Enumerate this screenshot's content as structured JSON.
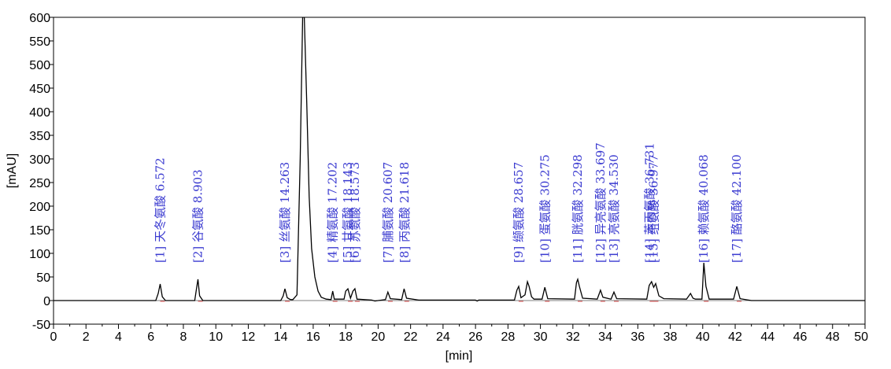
{
  "chart_data": {
    "type": "line",
    "xlabel": "[min]",
    "ylabel": "[mAU]",
    "xlim": [
      0,
      50
    ],
    "ylim": [
      -50,
      600
    ],
    "xticks": [
      0,
      2,
      4,
      6,
      8,
      10,
      12,
      14,
      16,
      18,
      20,
      22,
      24,
      26,
      28,
      30,
      32,
      34,
      36,
      38,
      40,
      42,
      44,
      46,
      48,
      50
    ],
    "yticks": [
      -50,
      0,
      50,
      100,
      150,
      200,
      250,
      300,
      350,
      400,
      450,
      500,
      550,
      600
    ],
    "grid": false,
    "series": [
      {
        "color": "#000000",
        "x": [
          0,
          6.3,
          6.45,
          6.57,
          6.7,
          6.9,
          8.7,
          8.82,
          8.9,
          9.0,
          9.2,
          14.0,
          14.15,
          14.26,
          14.4,
          14.6,
          14.75,
          15.0,
          15.2,
          15.35,
          15.45,
          15.6,
          15.75,
          15.9,
          16.1,
          16.3,
          16.5,
          16.8,
          17.1,
          17.2,
          17.3,
          17.9,
          18.0,
          18.14,
          18.3,
          18.45,
          18.57,
          18.7,
          19.6,
          19.8,
          20.0,
          20.45,
          20.6,
          20.75,
          21.45,
          21.6,
          21.75,
          22.5,
          26.0,
          26.1,
          26.2,
          28.4,
          28.55,
          28.66,
          28.8,
          29.05,
          29.2,
          29.3,
          29.45,
          29.6,
          30.1,
          30.27,
          30.45,
          32.1,
          32.22,
          32.3,
          32.4,
          32.6,
          33.5,
          33.7,
          33.85,
          34.35,
          34.53,
          34.7,
          36.55,
          36.7,
          36.85,
          36.98,
          37.1,
          37.3,
          37.6,
          39.0,
          39.25,
          39.4,
          39.55,
          39.95,
          40.07,
          40.2,
          40.4,
          41.9,
          42.1,
          42.3,
          43.0,
          50.0
        ],
        "y": [
          0,
          0,
          15,
          35,
          8,
          0,
          0,
          28,
          45,
          10,
          0,
          0,
          10,
          25,
          6,
          2,
          2,
          12,
          300,
          600,
          600,
          420,
          220,
          110,
          50,
          20,
          7,
          3,
          2,
          20,
          3,
          3,
          20,
          25,
          5,
          20,
          25,
          3,
          1,
          -1,
          0,
          2,
          18,
          4,
          2,
          25,
          5,
          1,
          1,
          -1,
          1,
          1,
          22,
          30,
          6,
          12,
          40,
          30,
          8,
          3,
          3,
          28,
          4,
          3,
          38,
          45,
          30,
          5,
          3,
          22,
          7,
          3,
          18,
          4,
          3,
          32,
          40,
          28,
          36,
          10,
          4,
          3,
          15,
          5,
          3,
          3,
          80,
          30,
          3,
          3,
          30,
          4,
          0,
          0
        ]
      }
    ],
    "peaks": [
      {
        "num": "[1]",
        "name": "天冬氨酸",
        "rt": "6.572"
      },
      {
        "num": "[2]",
        "name": "谷氨酸",
        "rt": "8.903"
      },
      {
        "num": "[3]",
        "name": "丝氨酸",
        "rt": "14.263"
      },
      {
        "num": "[4]",
        "name": "精氨酸",
        "rt": "17.202"
      },
      {
        "num": "[5]",
        "name": "甘氨酸",
        "rt": "18.143"
      },
      {
        "num": "[6]",
        "name": "苏氨酸",
        "rt": "18.573"
      },
      {
        "num": "[7]",
        "name": "脯氨酸",
        "rt": "20.607"
      },
      {
        "num": "[8]",
        "name": "丙氨酸",
        "rt": "21.618"
      },
      {
        "num": "[9]",
        "name": "缬氨酸",
        "rt": "28.657"
      },
      {
        "num": "[10]",
        "name": "蛋氨酸",
        "rt": "30.275"
      },
      {
        "num": "[11]",
        "name": "胱氨酸",
        "rt": "32.298"
      },
      {
        "num": "[12]",
        "name": "异亮氨酸",
        "rt": "33.697"
      },
      {
        "num": "[13]",
        "name": "亮氨酸",
        "rt": "34.530"
      },
      {
        "num": "[14]",
        "name": "苯丙氨酸",
        "rt": "36.731"
      },
      {
        "num": "[15]",
        "name": "组氨酸",
        "rt": "36.977"
      },
      {
        "num": "[16]",
        "name": "赖氨酸",
        "rt": "40.068"
      },
      {
        "num": "[17]",
        "name": "酪氨酸",
        "rt": "42.100"
      }
    ]
  }
}
